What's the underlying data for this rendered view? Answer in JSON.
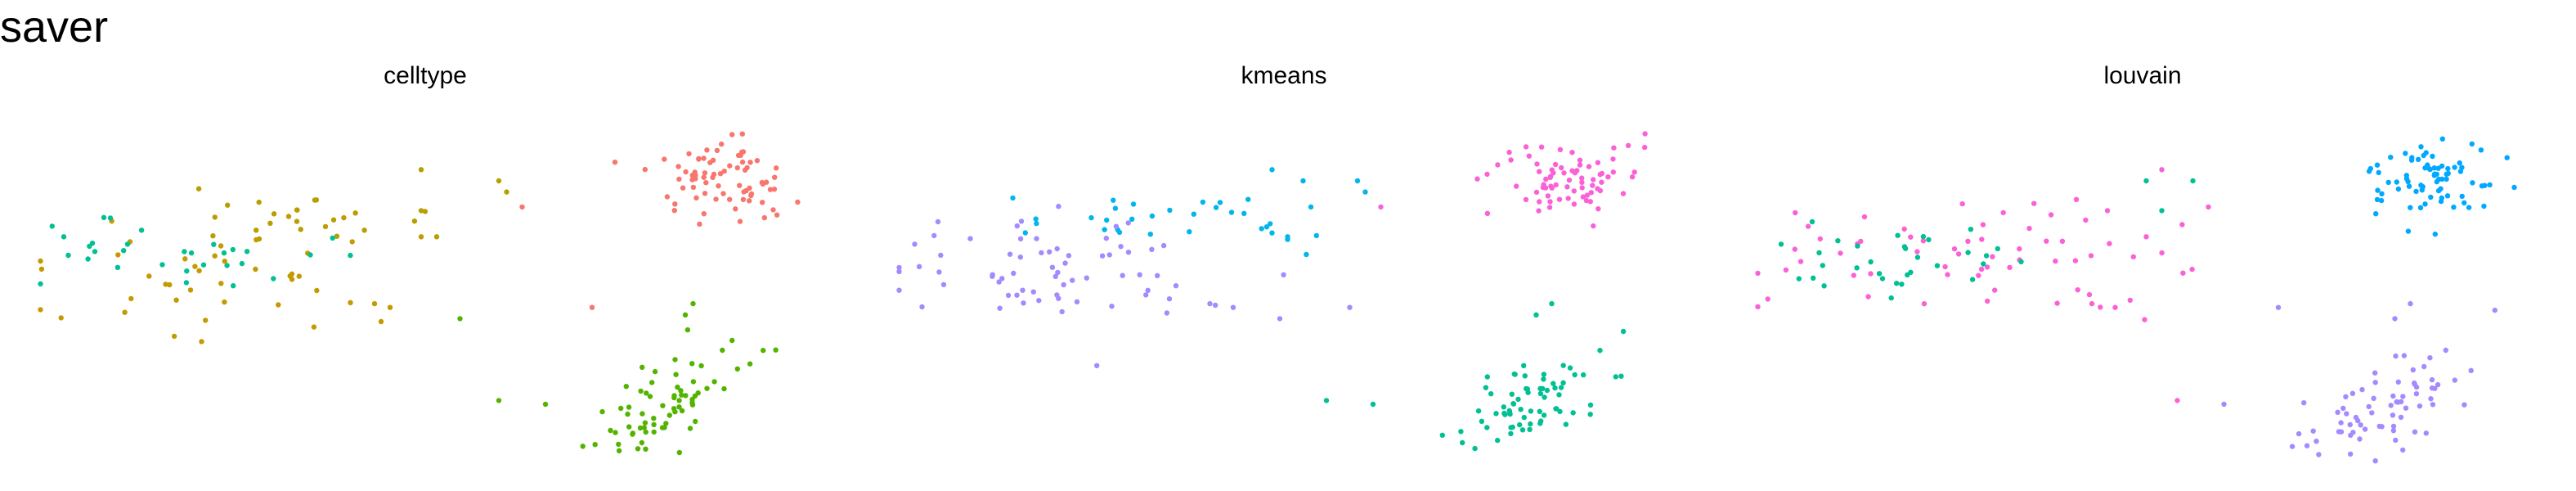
{
  "title": "saver",
  "colors": {
    "red": "#F8766D",
    "olive": "#B79F00",
    "gold": "#C49A00",
    "green": "#53B400",
    "teal": "#00C094",
    "cyan": "#00B6EB",
    "blue": "#00A9FF",
    "purple": "#A58AFF",
    "magenta": "#FB61D7"
  },
  "chart_data": [
    {
      "type": "scatter",
      "title": "celltype",
      "xlabel": "",
      "ylabel": "",
      "xlim": [
        0,
        10
      ],
      "ylim": [
        0,
        10
      ],
      "grid": false,
      "legend": "none",
      "clusters": [
        {
          "color": "red",
          "n": 75,
          "cx": 8.8,
          "cy": 8.0,
          "sx": 0.45,
          "sy": 0.5,
          "rot": 0.4
        },
        {
          "color": "olive",
          "n": 22,
          "cx": 3.2,
          "cy": 7.0,
          "sx": 0.9,
          "sy": 0.35,
          "rot": 0.0
        },
        {
          "color": "gold",
          "n": 40,
          "cx": 2.2,
          "cy": 5.2,
          "sx": 1.3,
          "sy": 0.8,
          "rot": 0.0
        },
        {
          "color": "teal",
          "n": 28,
          "cx": 1.9,
          "cy": 6.0,
          "sx": 1.0,
          "sy": 0.45,
          "rot": 0.0
        },
        {
          "color": "green",
          "n": 70,
          "cx": 8.2,
          "cy": 2.0,
          "sx": 0.4,
          "sy": 0.8,
          "rot": -0.5
        }
      ],
      "extra_points": [
        {
          "color": "red",
          "x": 6.3,
          "y": 7.3
        },
        {
          "color": "red",
          "x": 7.2,
          "y": 4.6
        },
        {
          "color": "olive",
          "x": 6.0,
          "y": 8.0
        },
        {
          "color": "olive",
          "x": 6.1,
          "y": 7.7
        },
        {
          "color": "olive",
          "x": 5.0,
          "y": 8.3
        },
        {
          "color": "olive",
          "x": 5.2,
          "y": 6.5
        },
        {
          "color": "olive",
          "x": 5.0,
          "y": 7.2
        },
        {
          "color": "gold",
          "x": 4.4,
          "y": 4.7
        },
        {
          "color": "gold",
          "x": 4.6,
          "y": 4.6
        },
        {
          "color": "gold",
          "x": 5.0,
          "y": 6.5
        },
        {
          "color": "green",
          "x": 5.5,
          "y": 4.3
        },
        {
          "color": "green",
          "x": 6.0,
          "y": 2.1
        },
        {
          "color": "green",
          "x": 6.6,
          "y": 2.0
        },
        {
          "color": "green",
          "x": 8.5,
          "y": 4.7
        },
        {
          "color": "green",
          "x": 8.4,
          "y": 4.4
        },
        {
          "color": "teal",
          "x": 0.4,
          "y": 6.5
        },
        {
          "color": "teal",
          "x": 0.8,
          "y": 6.1
        },
        {
          "color": "teal",
          "x": 1.0,
          "y": 7.0
        }
      ]
    },
    {
      "type": "scatter",
      "title": "kmeans",
      "xlabel": "",
      "ylabel": "",
      "xlim": [
        0,
        10
      ],
      "ylim": [
        0,
        10
      ],
      "grid": false,
      "legend": "none",
      "clusters": [
        {
          "color": "magenta",
          "n": 75,
          "cx": 8.8,
          "cy": 8.0,
          "sx": 0.45,
          "sy": 0.5,
          "rot": 0.4
        },
        {
          "color": "cyan",
          "n": 30,
          "cx": 3.7,
          "cy": 7.0,
          "sx": 0.9,
          "sy": 0.35,
          "rot": 0.0
        },
        {
          "color": "purple",
          "n": 65,
          "cx": 2.2,
          "cy": 5.5,
          "sx": 1.3,
          "sy": 0.8,
          "rot": 0.0
        },
        {
          "color": "teal",
          "n": 70,
          "cx": 8.2,
          "cy": 2.0,
          "sx": 0.4,
          "sy": 0.8,
          "rot": -0.5
        }
      ],
      "extra_points": [
        {
          "color": "cyan",
          "x": 4.9,
          "y": 8.3
        },
        {
          "color": "cyan",
          "x": 5.3,
          "y": 8.0
        },
        {
          "color": "cyan",
          "x": 5.4,
          "y": 7.3
        },
        {
          "color": "cyan",
          "x": 4.9,
          "y": 6.6
        },
        {
          "color": "cyan",
          "x": 6.0,
          "y": 8.0
        },
        {
          "color": "cyan",
          "x": 6.1,
          "y": 7.7
        },
        {
          "color": "cyan",
          "x": 5.1,
          "y": 6.5
        },
        {
          "color": "magenta",
          "x": 6.3,
          "y": 7.3
        },
        {
          "color": "purple",
          "x": 4.1,
          "y": 4.7
        },
        {
          "color": "purple",
          "x": 4.4,
          "y": 4.6
        },
        {
          "color": "purple",
          "x": 5.0,
          "y": 4.3
        },
        {
          "color": "purple",
          "x": 5.9,
          "y": 4.6
        },
        {
          "color": "teal",
          "x": 5.6,
          "y": 2.1
        },
        {
          "color": "teal",
          "x": 6.2,
          "y": 2.0
        },
        {
          "color": "teal",
          "x": 8.5,
          "y": 4.7
        },
        {
          "color": "teal",
          "x": 8.3,
          "y": 4.4
        },
        {
          "color": "purple",
          "x": 0.3,
          "y": 6.3
        },
        {
          "color": "purple",
          "x": 0.6,
          "y": 6.9
        }
      ]
    },
    {
      "type": "scatter",
      "title": "louvain",
      "xlabel": "",
      "ylabel": "",
      "xlim": [
        0,
        10
      ],
      "ylim": [
        0,
        10
      ],
      "grid": false,
      "legend": "none",
      "clusters": [
        {
          "color": "blue",
          "n": 75,
          "cx": 8.8,
          "cy": 8.0,
          "sx": 0.45,
          "sy": 0.5,
          "rot": 0.4
        },
        {
          "color": "magenta",
          "n": 60,
          "cx": 2.8,
          "cy": 5.8,
          "sx": 1.5,
          "sy": 0.9,
          "rot": 0.0
        },
        {
          "color": "teal",
          "n": 30,
          "cx": 2.0,
          "cy": 6.0,
          "sx": 0.9,
          "sy": 0.45,
          "rot": 0.0
        },
        {
          "color": "purple",
          "n": 70,
          "cx": 8.2,
          "cy": 2.0,
          "sx": 0.4,
          "sy": 0.8,
          "rot": -0.5
        }
      ],
      "extra_points": [
        {
          "color": "magenta",
          "x": 4.6,
          "y": 7.2
        },
        {
          "color": "magenta",
          "x": 4.2,
          "y": 7.5
        },
        {
          "color": "magenta",
          "x": 5.1,
          "y": 6.5
        },
        {
          "color": "magenta",
          "x": 4.4,
          "y": 4.7
        },
        {
          "color": "magenta",
          "x": 4.7,
          "y": 4.6
        },
        {
          "color": "magenta",
          "x": 5.3,
          "y": 8.3
        },
        {
          "color": "magenta",
          "x": 5.9,
          "y": 7.3
        },
        {
          "color": "magenta",
          "x": 5.5,
          "y": 2.1
        },
        {
          "color": "teal",
          "x": 5.1,
          "y": 8.0
        },
        {
          "color": "teal",
          "x": 5.7,
          "y": 8.0
        },
        {
          "color": "teal",
          "x": 5.3,
          "y": 7.2
        },
        {
          "color": "teal",
          "x": 0.4,
          "y": 6.3
        },
        {
          "color": "teal",
          "x": 0.8,
          "y": 6.9
        },
        {
          "color": "purple",
          "x": 6.1,
          "y": 2.0
        },
        {
          "color": "purple",
          "x": 6.8,
          "y": 4.6
        },
        {
          "color": "purple",
          "x": 8.5,
          "y": 4.7
        },
        {
          "color": "purple",
          "x": 8.3,
          "y": 4.3
        }
      ]
    }
  ]
}
